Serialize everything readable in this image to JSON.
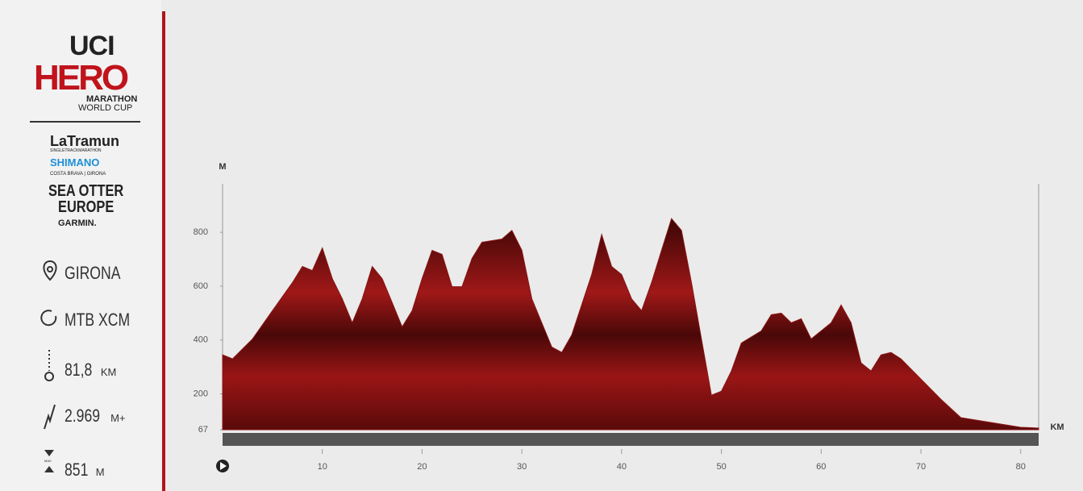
{
  "sidebar": {
    "logo_uci": "UCI",
    "logo_hero": "HERO",
    "logo_marathon": "MARATHON",
    "logo_world_cup": "WORLD CUP",
    "sponsor_latramun": "LaTramun",
    "sponsor_latramun_sub": "SINGLETRACKMARATHON",
    "sponsor_shimano": "SHIMANO",
    "sponsor_costa": "COSTA BRAVA | GIRONA",
    "sponsor_seaotter": "SEA OTTER",
    "sponsor_europe": "EUROPE",
    "sponsor_garmin": "GARMIN.",
    "location": "GIRONA",
    "discipline": "MTB XCM",
    "distance": "81,8",
    "distance_unit": "KM",
    "elevation_gain": "2.969",
    "elevation_gain_unit": "M+",
    "max_altitude": "851",
    "max_altitude_unit": "M",
    "max_label": "MAX"
  },
  "chart_data": {
    "type": "area",
    "y_label": "M",
    "x_label": "KM",
    "color": "#8a1414",
    "x": [
      0,
      1,
      3,
      5,
      7,
      8,
      9,
      10,
      11,
      12,
      13,
      14,
      15,
      16,
      17,
      18,
      19,
      20,
      21,
      22,
      23,
      24,
      25,
      26,
      27,
      28,
      29,
      30,
      31,
      33,
      34,
      35,
      37,
      38,
      39,
      40,
      41,
      42,
      43,
      44,
      45,
      46,
      47,
      48,
      49,
      50,
      51,
      52,
      54,
      55,
      56,
      57,
      58,
      59,
      61,
      62,
      63,
      64,
      65,
      66,
      67,
      68,
      70,
      72,
      74,
      76,
      78,
      80,
      81.8
    ],
    "values": [
      345,
      330,
      404,
      509,
      613,
      673,
      658,
      742,
      628,
      553,
      464,
      553,
      673,
      628,
      539,
      449,
      509,
      628,
      733,
      718,
      598,
      598,
      703,
      763,
      769,
      775,
      807,
      733,
      553,
      374,
      354,
      419,
      643,
      792,
      673,
      643,
      553,
      509,
      613,
      733,
      851,
      807,
      613,
      404,
      195,
      210,
      285,
      389,
      434,
      494,
      500,
      464,
      479,
      404,
      464,
      530,
      464,
      315,
      285,
      345,
      354,
      330,
      255,
      180,
      112,
      100,
      88,
      76,
      73
    ],
    "xlim": [
      0,
      81.8
    ],
    "ylim": [
      67,
      980
    ],
    "xticks": [
      10,
      20,
      30,
      40,
      50,
      60,
      70,
      80
    ],
    "yticks": [
      67,
      200,
      400,
      600,
      800
    ]
  }
}
